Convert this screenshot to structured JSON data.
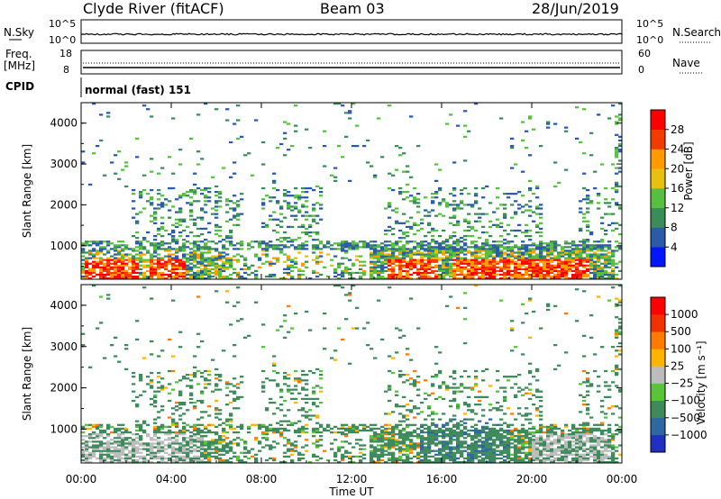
{
  "header": {
    "station": "Clyde River (fitACF)",
    "beam": "Beam 03",
    "date": "28/Jun/2019"
  },
  "top_panels": {
    "noise": {
      "left_label": "N.Sky",
      "right_label": "N.Search",
      "left_ticks": [
        "10^5",
        "10^0"
      ],
      "right_ticks": [
        "10^5",
        "10^0"
      ]
    },
    "freq": {
      "left_label_1": "Freq.",
      "left_label_2": "[MHz]",
      "right_label": "Nave",
      "left_ticks": [
        "18",
        "8"
      ],
      "right_ticks": [
        "60",
        "0"
      ]
    },
    "cpid": {
      "label": "CPID",
      "value": "normal (fast) 151"
    }
  },
  "time_axis": {
    "ticks": [
      "00:00",
      "04:00",
      "08:00",
      "12:00",
      "16:00",
      "20:00",
      "00:00"
    ],
    "label": "Time UT"
  },
  "chart_data": [
    {
      "type": "heatmap",
      "ylabel": "Slant Range [km]",
      "y_ticks": [
        "1000",
        "2000",
        "3000",
        "4000"
      ],
      "ylim": [
        180,
        4500
      ],
      "xlim_hours": [
        0,
        24
      ],
      "colorbar": {
        "label": "Power [dB]",
        "ticks": [
          "4",
          "8",
          "12",
          "16",
          "20",
          "24",
          "28"
        ],
        "colors": [
          "#0016ff",
          "#2b5aa8",
          "#3c8c5a",
          "#58c040",
          "#e8c010",
          "#ff9a00",
          "#f03c00",
          "#ff0000"
        ]
      }
    },
    {
      "type": "heatmap",
      "ylabel": "Slant Range [km]",
      "y_ticks": [
        "1000",
        "2000",
        "3000",
        "4000"
      ],
      "ylim": [
        180,
        4500
      ],
      "xlim_hours": [
        0,
        24
      ],
      "colorbar": {
        "label": "Velocity [m s⁻¹]",
        "ticks": [
          "1000",
          "500",
          "100",
          "25",
          "−25",
          "−100",
          "−500",
          "−1000"
        ],
        "colors": [
          "#2030c0",
          "#2f68a0",
          "#3f8a5c",
          "#57c43a",
          "#bcbcbc",
          "#ffb400",
          "#ff7a00",
          "#f03200",
          "#ff0000"
        ]
      }
    }
  ]
}
